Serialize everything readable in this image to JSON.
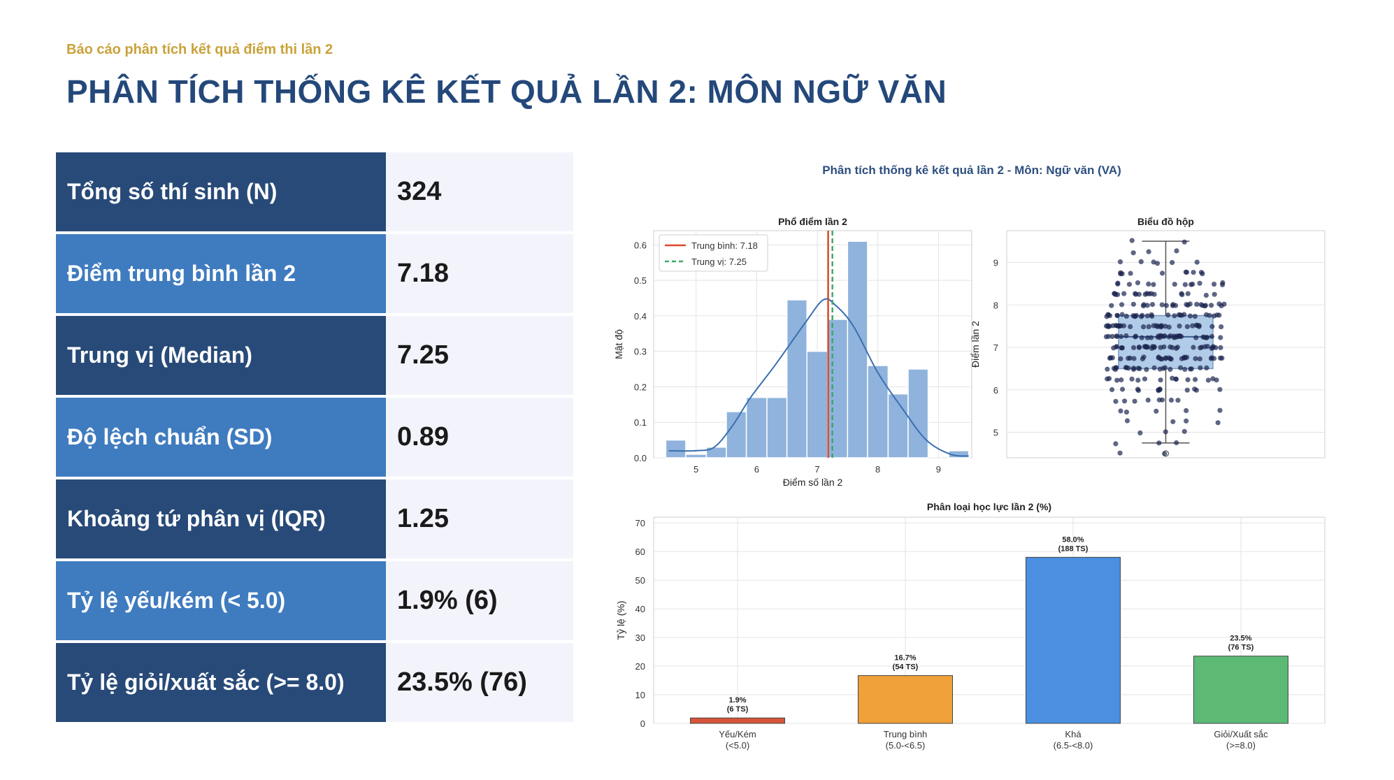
{
  "header": {
    "subtitle": "Báo cáo phân tích kết quả điểm thi lần 2",
    "title": "PHÂN TÍCH THỐNG KÊ KẾT QUẢ LẦN 2: MÔN NGỮ VĂN"
  },
  "stats": [
    {
      "label": "Tổng số thí sinh (N)",
      "value": "324"
    },
    {
      "label": "Điểm trung bình lần 2",
      "value": "7.18"
    },
    {
      "label": "Trung vị (Median)",
      "value": "7.25"
    },
    {
      "label": "Độ lệch chuẩn (SD)",
      "value": "0.89"
    },
    {
      "label": "Khoảng tứ phân vị (IQR)",
      "value": "1.25"
    },
    {
      "label": "Tỷ lệ yếu/kém (< 5.0)",
      "value": "1.9% (6)"
    },
    {
      "label": "Tỷ lệ giỏi/xuất sắc (>= 8.0)",
      "value": "23.5% (76)"
    }
  ],
  "colors": {
    "dark_row": "#284a78",
    "light_row": "#3f7bbf",
    "hist_bar": "#8fb3dc",
    "kde": "#3a6fb0",
    "mean": "#d9482b",
    "median": "#3aaa6a",
    "box": "#a9c7e6",
    "dots": "#1b2550",
    "cat": [
      "#d9533a",
      "#f0a13a",
      "#4a8fe0",
      "#5cba74"
    ]
  },
  "figure_title": "Phân tích thống kê kết quả lần 2 - Môn: Ngữ văn (VA)",
  "chart_data": [
    {
      "type": "histogram",
      "title": "Phổ điểm lần 2",
      "xlabel": "Điểm số lần 2",
      "ylabel": "Mật độ",
      "xlim": [
        4.3,
        9.55
      ],
      "ylim": [
        0,
        0.64
      ],
      "x_ticks": [
        5,
        6,
        7,
        8,
        9
      ],
      "y_ticks": [
        0.0,
        0.1,
        0.2,
        0.3,
        0.4,
        0.5,
        0.6
      ],
      "bin_edges": [
        4.5,
        4.83,
        5.17,
        5.5,
        5.83,
        6.17,
        6.5,
        6.83,
        7.17,
        7.5,
        7.83,
        8.17,
        8.5,
        8.83,
        9.17,
        9.5
      ],
      "density": [
        0.05,
        0.01,
        0.03,
        0.13,
        0.17,
        0.17,
        0.445,
        0.3,
        0.39,
        0.61,
        0.26,
        0.18,
        0.25,
        0.0,
        0.02
      ],
      "kde": {
        "x": [
          4.55,
          5.0,
          5.3,
          5.6,
          5.9,
          6.3,
          6.8,
          7.1,
          7.3,
          7.6,
          8.0,
          8.4,
          8.8,
          9.2,
          9.5
        ],
        "y": [
          0.02,
          0.02,
          0.03,
          0.09,
          0.17,
          0.26,
          0.38,
          0.445,
          0.43,
          0.37,
          0.24,
          0.14,
          0.05,
          0.01,
          0.005
        ]
      },
      "mean": 7.18,
      "median": 7.25,
      "legend": [
        "Trung bình: 7.18",
        "Trung vị: 7.25"
      ],
      "legend_position": "upper-left",
      "grid": true
    },
    {
      "type": "box",
      "title": "Biểu đồ hộp",
      "ylabel": "Điểm lần 2",
      "ylim": [
        4.4,
        9.75
      ],
      "y_ticks": [
        5,
        6,
        7,
        8,
        9
      ],
      "q1": 6.5,
      "median": 7.25,
      "q3": 7.75,
      "whisker_low": 4.75,
      "whisker_high": 9.5,
      "outliers": [
        4.5
      ],
      "grid": true
    },
    {
      "type": "bar",
      "title": "Phân loại học lực lần 2 (%)",
      "ylabel": "Tỷ lệ (%)",
      "ylim": [
        0,
        72
      ],
      "y_ticks": [
        0,
        10,
        20,
        30,
        40,
        50,
        60,
        70
      ],
      "categories": [
        [
          "Yếu/Kém",
          "(<5.0)"
        ],
        [
          "Trung bình",
          "(5.0-<6.5)"
        ],
        [
          "Khá",
          "(6.5-<8.0)"
        ],
        [
          "Giỏi/Xuất sắc",
          "(>=8.0)"
        ]
      ],
      "values": [
        1.9,
        16.7,
        58.0,
        23.5
      ],
      "data_labels": [
        [
          "1.9%",
          "(6 TS)"
        ],
        [
          "16.7%",
          "(54 TS)"
        ],
        [
          "58.0%",
          "(188 TS)"
        ],
        [
          "23.5%",
          "(76 TS)"
        ]
      ],
      "grid": true
    }
  ]
}
